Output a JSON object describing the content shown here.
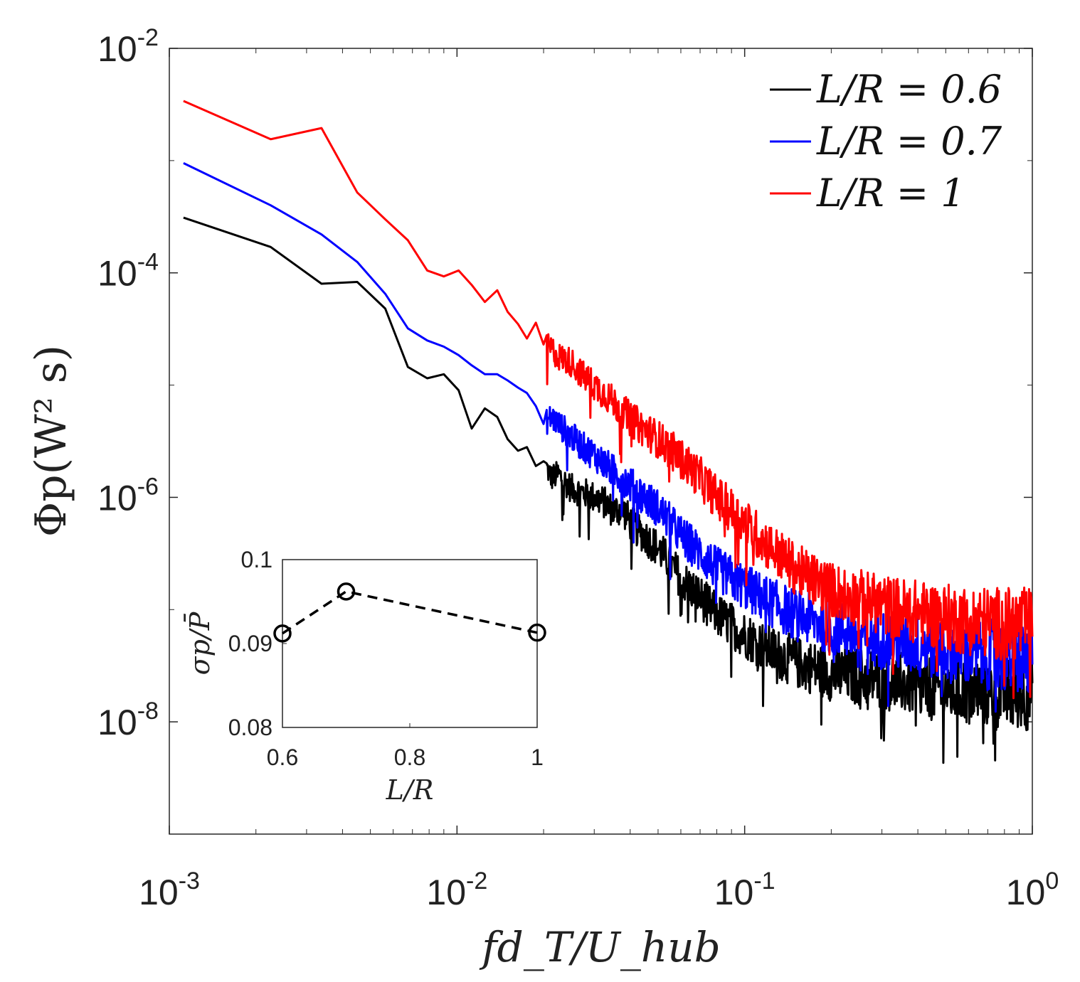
{
  "chart_data": [
    {
      "type": "line",
      "scale": {
        "x": "log",
        "y": "log"
      },
      "xlabel": "fd_T/U_hub",
      "ylabel": "Φp(W² s)",
      "xlim": [
        0.001,
        1
      ],
      "ylim": [
        1e-09,
        0.01
      ],
      "x_ticks": [
        {
          "value": 0.001,
          "base": "10",
          "exp": "-3"
        },
        {
          "value": 0.01,
          "base": "10",
          "exp": "-2"
        },
        {
          "value": 0.1,
          "base": "10",
          "exp": "-1"
        },
        {
          "value": 1,
          "base": "10",
          "exp": "0"
        }
      ],
      "y_ticks": [
        {
          "value": 1e-08,
          "base": "10",
          "exp": "-8"
        },
        {
          "value": 1e-06,
          "base": "10",
          "exp": "-6"
        },
        {
          "value": 0.0001,
          "base": "10",
          "exp": "-4"
        },
        {
          "value": 0.01,
          "base": "10",
          "exp": "-2"
        }
      ],
      "legend_position": "top-right",
      "series": [
        {
          "name": "L/R = 0.6",
          "color": "#000000",
          "x": [
            0.00112,
            0.00225,
            0.00338,
            0.0045,
            0.00563,
            0.00675,
            0.00788,
            0.009,
            0.01013,
            0.01125,
            0.0125,
            0.0138,
            0.015,
            0.0163,
            0.0175,
            0.0188,
            0.02,
            0.0213,
            0.0225,
            0.025,
            0.0275,
            0.03,
            0.0325,
            0.035,
            0.0375,
            0.04,
            0.045,
            0.05,
            0.055,
            0.06,
            0.07,
            0.08,
            0.1,
            0.12,
            0.15,
            0.2,
            0.3,
            0.4,
            0.5,
            0.6,
            0.8,
            1.0
          ],
          "values": [
            0.00031,
            0.00017,
            8e-05,
            8.3e-05,
            4.8e-05,
            1.45e-05,
            1.15e-05,
            1.25e-05,
            9e-06,
            4.1e-06,
            6.2e-06,
            5.2e-06,
            3.3e-06,
            2.6e-06,
            2.8e-06,
            1.9e-06,
            2.1e-06,
            1.5e-06,
            1.6e-06,
            1.2e-06,
            1.1e-06,
            1e-06,
            9e-07,
            7.5e-07,
            8e-07,
            6e-07,
            4.5e-07,
            3.5e-07,
            2.6e-07,
            1.9e-07,
            1.3e-07,
            9e-08,
            6e-08,
            4.5e-08,
            3.4e-08,
            2.7e-08,
            2.4e-08,
            2.1e-08,
            1.9e-08,
            1.9e-08,
            1.8e-08,
            1.8e-08
          ]
        },
        {
          "name": "L/R = 0.7",
          "color": "#0000ff",
          "x": [
            0.00112,
            0.00225,
            0.00338,
            0.0045,
            0.00563,
            0.00675,
            0.00788,
            0.009,
            0.01013,
            0.01125,
            0.0125,
            0.0138,
            0.015,
            0.0163,
            0.0175,
            0.0188,
            0.02,
            0.0213,
            0.0225,
            0.025,
            0.0275,
            0.03,
            0.0325,
            0.035,
            0.0375,
            0.04,
            0.045,
            0.05,
            0.055,
            0.06,
            0.07,
            0.08,
            0.1,
            0.12,
            0.15,
            0.2,
            0.3,
            0.4,
            0.5,
            0.6,
            0.8,
            1.0
          ],
          "values": [
            0.00095,
            0.0004,
            0.00022,
            0.000125,
            6.5e-05,
            3.2e-05,
            2.5e-05,
            2.2e-05,
            1.85e-05,
            1.5e-05,
            1.25e-05,
            1.25e-05,
            1.1e-05,
            9.5e-06,
            8.5e-06,
            6.5e-06,
            4.5e-06,
            5.2e-06,
            4.5e-06,
            3.5e-06,
            2.8e-06,
            2.4e-06,
            2e-06,
            1.7e-06,
            1.5e-06,
            1.3e-06,
            1e-06,
            8e-07,
            6e-07,
            4.6e-07,
            3.2e-07,
            2.3e-07,
            1.6e-07,
            1.2e-07,
            9e-08,
            7e-08,
            5.5e-08,
            5e-08,
            4.5e-08,
            4.2e-08,
            3.8e-08,
            3.6e-08
          ]
        },
        {
          "name": "L/R = 1",
          "color": "#ff0000",
          "x": [
            0.00112,
            0.00225,
            0.00338,
            0.0045,
            0.00563,
            0.00675,
            0.00788,
            0.009,
            0.01013,
            0.01125,
            0.0125,
            0.0138,
            0.015,
            0.0163,
            0.0175,
            0.0188,
            0.02,
            0.0213,
            0.0225,
            0.025,
            0.0275,
            0.03,
            0.0325,
            0.035,
            0.0375,
            0.04,
            0.045,
            0.05,
            0.055,
            0.06,
            0.07,
            0.08,
            0.1,
            0.12,
            0.15,
            0.2,
            0.3,
            0.4,
            0.5,
            0.6,
            0.8,
            1.0
          ],
          "values": [
            0.0034,
            0.00155,
            0.00195,
            0.00052,
            0.0003,
            0.000195,
            0.000105,
            9.3e-05,
            0.000105,
            7.8e-05,
            5.5e-05,
            7e-05,
            4.5e-05,
            3.5e-05,
            2.6e-05,
            3.6e-05,
            2.3e-05,
            2.1e-05,
            1.8e-05,
            1.6e-05,
            1.2e-05,
            1e-05,
            8.5e-06,
            7e-06,
            6e-06,
            5e-06,
            4e-06,
            3.3e-06,
            2.7e-06,
            2.2e-06,
            1.5e-06,
            1e-06,
            6e-07,
            3.8e-07,
            2.3e-07,
            1.5e-07,
            1.1e-07,
            9.5e-08,
            8.5e-08,
            8e-08,
            7.5e-08,
            7.2e-08
          ]
        }
      ]
    },
    {
      "type": "line",
      "inset": true,
      "xlabel": "L/R",
      "ylabel": "σp/P̄",
      "xlim": [
        0.6,
        1
      ],
      "ylim": [
        0.08,
        0.1
      ],
      "x_ticks": [
        "0.6",
        "0.8",
        "1"
      ],
      "y_ticks": [
        "0.08",
        "0.09",
        "0.1"
      ],
      "linestyle": "dashed",
      "marker": "circle",
      "color": "#000000",
      "x": [
        0.6,
        0.7,
        1.0
      ],
      "values": [
        0.0912,
        0.0962,
        0.0913
      ]
    }
  ],
  "legend": [
    {
      "label": "L/R = 0.6",
      "color": "#000000"
    },
    {
      "label": "L/R = 0.7",
      "color": "#0000ff"
    },
    {
      "label": "L/R = 1",
      "color": "#ff0000"
    }
  ]
}
